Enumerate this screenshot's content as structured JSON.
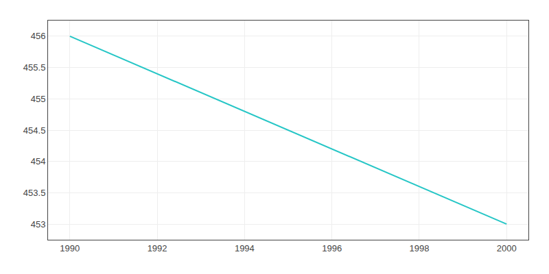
{
  "chart_data": {
    "type": "line",
    "x": [
      1990,
      2000
    ],
    "values": [
      456,
      453
    ],
    "color": "#26C6C6",
    "xlim": [
      1989.5,
      2000.5
    ],
    "ylim": [
      452.75,
      456.25
    ],
    "xticks": [
      1990,
      1992,
      1994,
      1996,
      1998,
      2000
    ],
    "yticks": [
      453,
      453.5,
      454,
      454.5,
      455,
      455.5,
      456
    ],
    "grid": true
  }
}
